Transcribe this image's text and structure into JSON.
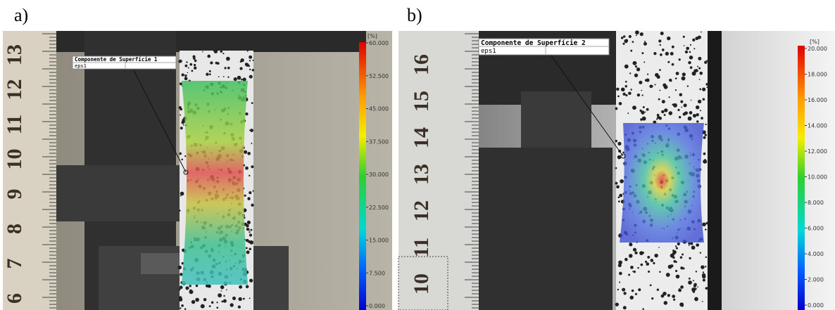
{
  "panels": [
    {
      "label": "a)",
      "legend": {
        "title": "Componente de Superfície 1",
        "row": "eps1"
      },
      "colorbar": {
        "unit": "[%]",
        "labels": [
          "60.000",
          "52.500",
          "45.000",
          "37.500",
          "30.000",
          "22.500",
          "15.000",
          "7.500",
          "0.000"
        ]
      },
      "ruler": [
        "13",
        "12",
        "11",
        "10",
        "9",
        "8",
        "7",
        "6"
      ]
    },
    {
      "label": "b)",
      "legend": {
        "title": "Componente de Superfície 2",
        "row": "eps1"
      },
      "colorbar": {
        "unit": "[%]",
        "labels": [
          "20.000",
          "18.000",
          "16.000",
          "14.000",
          "12.000",
          "10.000",
          "8.000",
          "6.000",
          "4.000",
          "2.000",
          "0.000"
        ]
      },
      "ruler": [
        "16",
        "15",
        "14",
        "13",
        "12",
        "11",
        "10"
      ]
    }
  ]
}
